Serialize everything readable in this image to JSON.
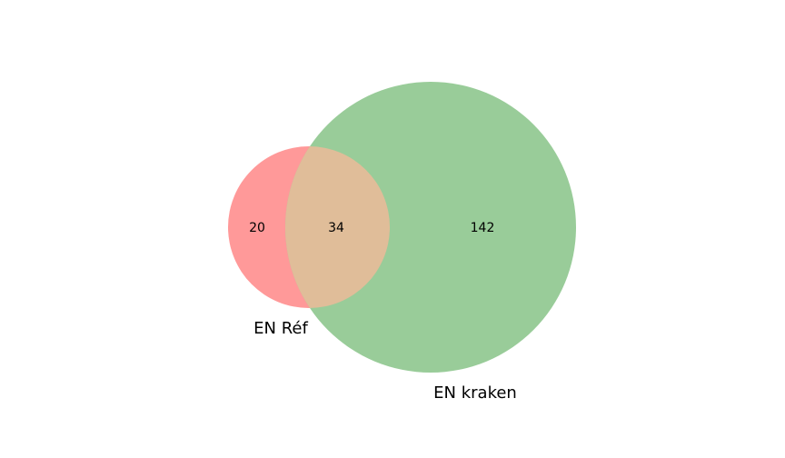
{
  "venn": {
    "sets": [
      {
        "name": "EN Réf",
        "color": "#ff9999"
      },
      {
        "name": "EN kraken",
        "color": "#99cc99"
      }
    ],
    "intersection_color": "#e0bd99",
    "counts": {
      "only_ref": "20",
      "both": "34",
      "only_kraken": "142"
    }
  }
}
